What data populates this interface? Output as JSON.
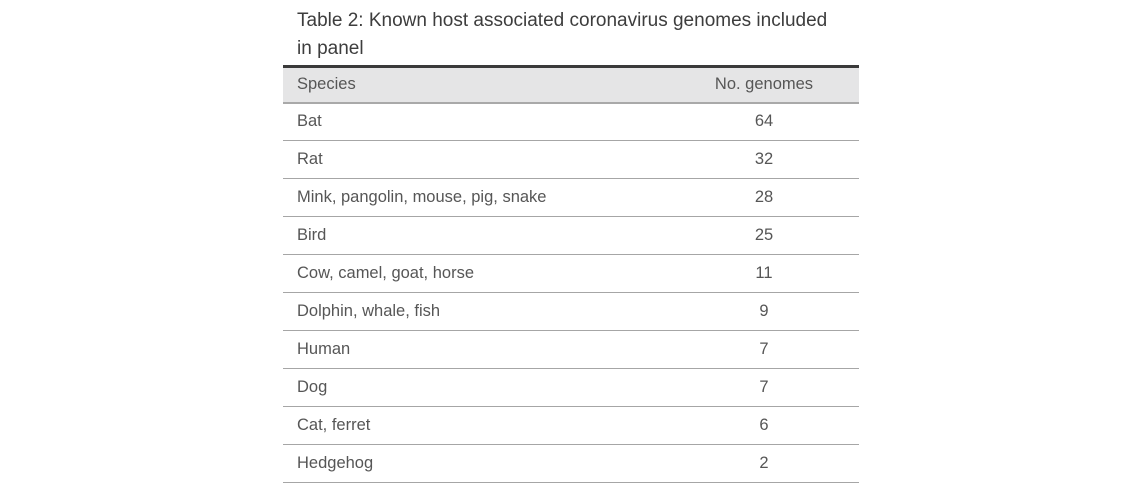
{
  "theme": {
    "background": "#ffffff",
    "header_bg": "#e5e5e6",
    "table_top_border": "#3a3a3a",
    "header_bottom_border": "#a9a9a9",
    "row_border": "#a6a6a6",
    "caption_text": "#3d3d3d",
    "body_text": "#565656"
  },
  "table": {
    "caption": "Table 2: Known host associated coronavirus genomes included in panel",
    "columns": [
      "Species",
      "No. genomes"
    ],
    "rows": [
      {
        "species": "Bat",
        "genomes": "64"
      },
      {
        "species": "Rat",
        "genomes": "32"
      },
      {
        "species": "Mink, pangolin, mouse, pig, snake",
        "genomes": "28"
      },
      {
        "species": "Bird",
        "genomes": "25"
      },
      {
        "species": "Cow, camel, goat, horse",
        "genomes": "11"
      },
      {
        "species": "Dolphin, whale, fish",
        "genomes": "9"
      },
      {
        "species": "Human",
        "genomes": "7"
      },
      {
        "species": "Dog",
        "genomes": "7"
      },
      {
        "species": "Cat, ferret",
        "genomes": "6"
      },
      {
        "species": "Hedgehog",
        "genomes": "2"
      }
    ]
  }
}
